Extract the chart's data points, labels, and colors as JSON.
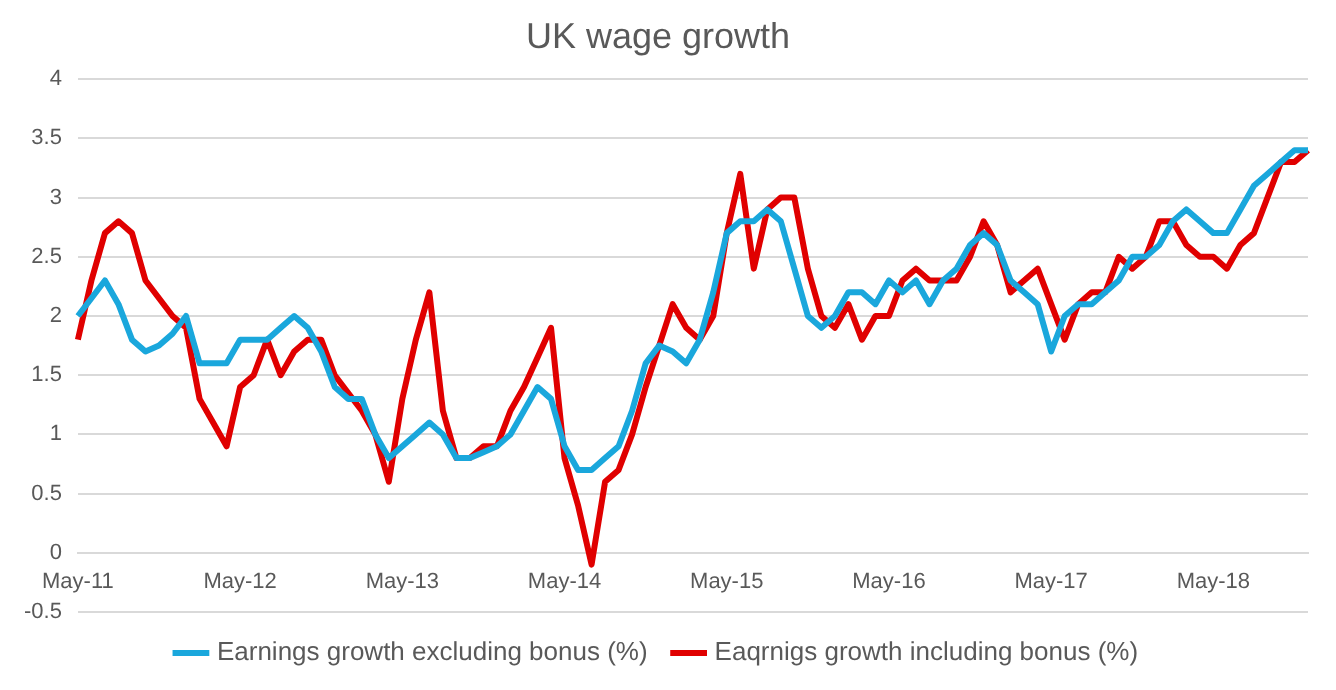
{
  "chart_data": {
    "type": "line",
    "title": "UK wage growth",
    "categories": [
      "May-11",
      null,
      null,
      null,
      null,
      null,
      null,
      null,
      null,
      null,
      null,
      null,
      "May-12",
      null,
      null,
      null,
      null,
      null,
      null,
      null,
      null,
      null,
      null,
      null,
      "May-13",
      null,
      null,
      null,
      null,
      null,
      null,
      null,
      null,
      null,
      null,
      null,
      "May-14",
      null,
      null,
      null,
      null,
      null,
      null,
      null,
      null,
      null,
      null,
      null,
      "May-15",
      null,
      null,
      null,
      null,
      null,
      null,
      null,
      null,
      null,
      null,
      null,
      "May-16",
      null,
      null,
      null,
      null,
      null,
      null,
      null,
      null,
      null,
      null,
      null,
      "May-17",
      null,
      null,
      null,
      null,
      null,
      null,
      null,
      null,
      null,
      null,
      null,
      "May-18",
      null,
      null,
      null,
      null,
      null,
      null,
      null
    ],
    "series": [
      {
        "name": "Earnings growth excluding bonus (%)",
        "color": "#1aa7dc",
        "values": [
          2.0,
          2.15,
          2.3,
          2.1,
          1.8,
          1.7,
          1.75,
          1.85,
          2.0,
          1.6,
          1.6,
          1.6,
          1.8,
          1.8,
          1.8,
          1.9,
          2.0,
          1.9,
          1.7,
          1.4,
          1.3,
          1.3,
          1.0,
          0.8,
          0.9,
          1.0,
          1.1,
          1.0,
          0.8,
          0.8,
          0.85,
          0.9,
          1.0,
          1.2,
          1.4,
          1.3,
          0.9,
          0.7,
          0.7,
          0.8,
          0.9,
          1.2,
          1.6,
          1.75,
          1.7,
          1.6,
          1.8,
          2.2,
          2.7,
          2.8,
          2.8,
          2.9,
          2.8,
          2.4,
          2.0,
          1.9,
          2.0,
          2.2,
          2.2,
          2.1,
          2.3,
          2.2,
          2.3,
          2.1,
          2.3,
          2.4,
          2.6,
          2.7,
          2.6,
          2.3,
          2.2,
          2.1,
          1.7,
          2.0,
          2.1,
          2.1,
          2.2,
          2.3,
          2.5,
          2.5,
          2.6,
          2.8,
          2.9,
          2.8,
          2.7,
          2.7,
          2.9,
          3.1,
          3.2,
          3.3,
          3.4,
          3.4
        ]
      },
      {
        "name": "Eaqrnigs growth including bonus (%)",
        "color": "#e00000",
        "values": [
          1.8,
          2.3,
          2.7,
          2.8,
          2.7,
          2.3,
          2.15,
          2.0,
          1.9,
          1.3,
          1.1,
          0.9,
          1.4,
          1.5,
          1.8,
          1.5,
          1.7,
          1.8,
          1.8,
          1.5,
          1.35,
          1.2,
          1.0,
          0.6,
          1.3,
          1.8,
          2.2,
          1.2,
          0.8,
          0.8,
          0.9,
          0.9,
          1.2,
          1.4,
          1.65,
          1.9,
          0.8,
          0.4,
          -0.1,
          0.6,
          0.7,
          1.0,
          1.4,
          1.75,
          2.1,
          1.9,
          1.8,
          2.0,
          2.7,
          3.2,
          2.4,
          2.9,
          3.0,
          3.0,
          2.4,
          2.0,
          1.9,
          2.1,
          1.8,
          2.0,
          2.0,
          2.3,
          2.4,
          2.3,
          2.3,
          2.3,
          2.5,
          2.8,
          2.6,
          2.2,
          2.3,
          2.4,
          2.1,
          1.8,
          2.1,
          2.2,
          2.2,
          2.5,
          2.4,
          2.5,
          2.8,
          2.8,
          2.6,
          2.5,
          2.5,
          2.4,
          2.6,
          2.7,
          3.0,
          3.3,
          3.3,
          3.4
        ]
      }
    ],
    "ylim": [
      -0.5,
      4
    ],
    "yticks": [
      -0.5,
      0,
      0.5,
      1,
      1.5,
      2,
      2.5,
      3,
      3.5,
      4
    ],
    "grid": "y",
    "legend": "bottom",
    "marker": "none",
    "line_style": "solid"
  }
}
